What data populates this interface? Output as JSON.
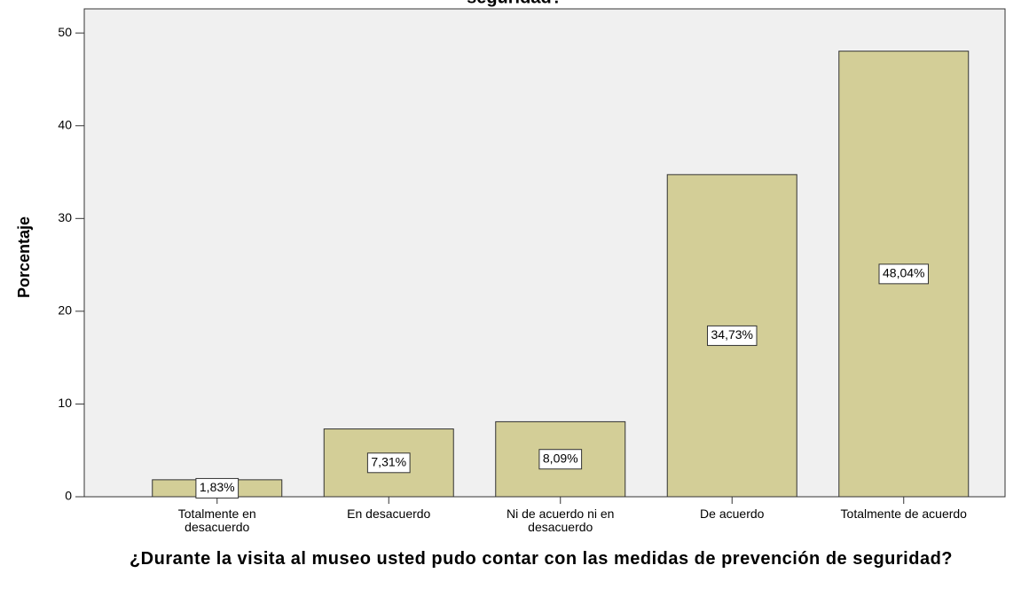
{
  "chart_data": {
    "type": "bar",
    "title": "seguridad?",
    "categories": [
      "Totalmente en desacuerdo",
      "En desacuerdo",
      "Ni de acuerdo ni en desacuerdo",
      "De acuerdo",
      "Totalmente de acuerdo"
    ],
    "values": [
      1.83,
      7.31,
      8.09,
      34.73,
      48.04
    ],
    "value_labels": [
      "1,83%",
      "7,31%",
      "8,09%",
      "34,73%",
      "48,04%"
    ],
    "color": "#d3ce97",
    "y_label": "Porcentaje",
    "x_label": "¿Durante la visita al museo usted pudo contar con las medidas de prevención de seguridad?",
    "ylim": [
      0,
      52.6
    ],
    "yticks": [
      0,
      10,
      20,
      30,
      40,
      50
    ]
  }
}
